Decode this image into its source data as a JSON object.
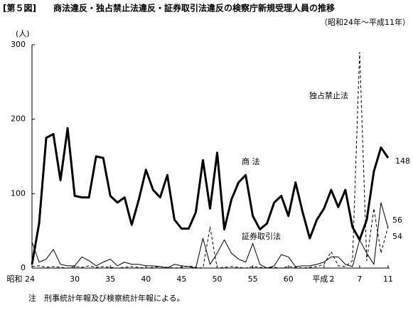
{
  "chart_data": {
    "type": "line",
    "title": "[第５図]　　商法違反・独占禁止法違反・証券取引法違反の検察庁新規受理人員の推移",
    "subtitle": "（昭和24年～平成11年）",
    "y_unit": "(人)",
    "note": "注　刑事統計年報及び検察統計年報による。",
    "categories": [
      "昭和 24",
      null,
      null,
      null,
      null,
      null,
      "30",
      null,
      null,
      null,
      null,
      "35",
      null,
      null,
      null,
      null,
      "40",
      null,
      null,
      null,
      null,
      "45",
      null,
      null,
      null,
      null,
      "50",
      null,
      null,
      null,
      null,
      "55",
      null,
      null,
      null,
      null,
      "60",
      null,
      null,
      null,
      null,
      "平成２",
      null,
      null,
      null,
      null,
      "7",
      null,
      null,
      null,
      "11"
    ],
    "ylim": [
      0,
      300
    ],
    "yticks": [
      0,
      100,
      200,
      300
    ],
    "series": [
      {
        "name": "商 法",
        "color": "#000000",
        "style": "solid",
        "width": 3,
        "values": [
          5,
          60,
          175,
          180,
          118,
          188,
          97,
          95,
          95,
          150,
          148,
          97,
          88,
          95,
          58,
          92,
          132,
          105,
          95,
          125,
          65,
          53,
          53,
          75,
          145,
          80,
          155,
          52,
          92,
          115,
          125,
          70,
          52,
          60,
          88,
          97,
          70,
          115,
          75,
          40,
          65,
          80,
          105,
          82,
          105,
          55,
          38,
          65,
          130,
          162,
          148
        ]
      },
      {
        "name": "独占禁止法",
        "color": "#000000",
        "style": "dashed",
        "width": 1,
        "values": [
          2,
          3,
          1,
          2,
          1,
          0,
          2,
          1,
          3,
          1,
          2,
          1,
          0,
          1,
          2,
          1,
          0,
          1,
          2,
          1,
          0,
          1,
          3,
          1,
          0,
          55,
          0,
          1,
          2,
          1,
          0,
          2,
          1,
          0,
          1,
          0,
          2,
          1,
          0,
          1,
          2,
          5,
          22,
          3,
          2,
          10,
          290,
          10,
          80,
          20,
          56
        ]
      },
      {
        "name": "証券取引法",
        "color": "#000000",
        "style": "solid",
        "width": 1,
        "values": [
          35,
          8,
          12,
          25,
          5,
          3,
          3,
          15,
          10,
          3,
          8,
          12,
          3,
          8,
          5,
          5,
          3,
          3,
          2,
          0,
          5,
          3,
          2,
          0,
          40,
          5,
          20,
          38,
          20,
          12,
          8,
          33,
          5,
          0,
          3,
          18,
          15,
          2,
          3,
          3,
          5,
          8,
          15,
          15,
          5,
          2,
          38,
          20,
          5,
          88,
          54
        ]
      }
    ]
  }
}
